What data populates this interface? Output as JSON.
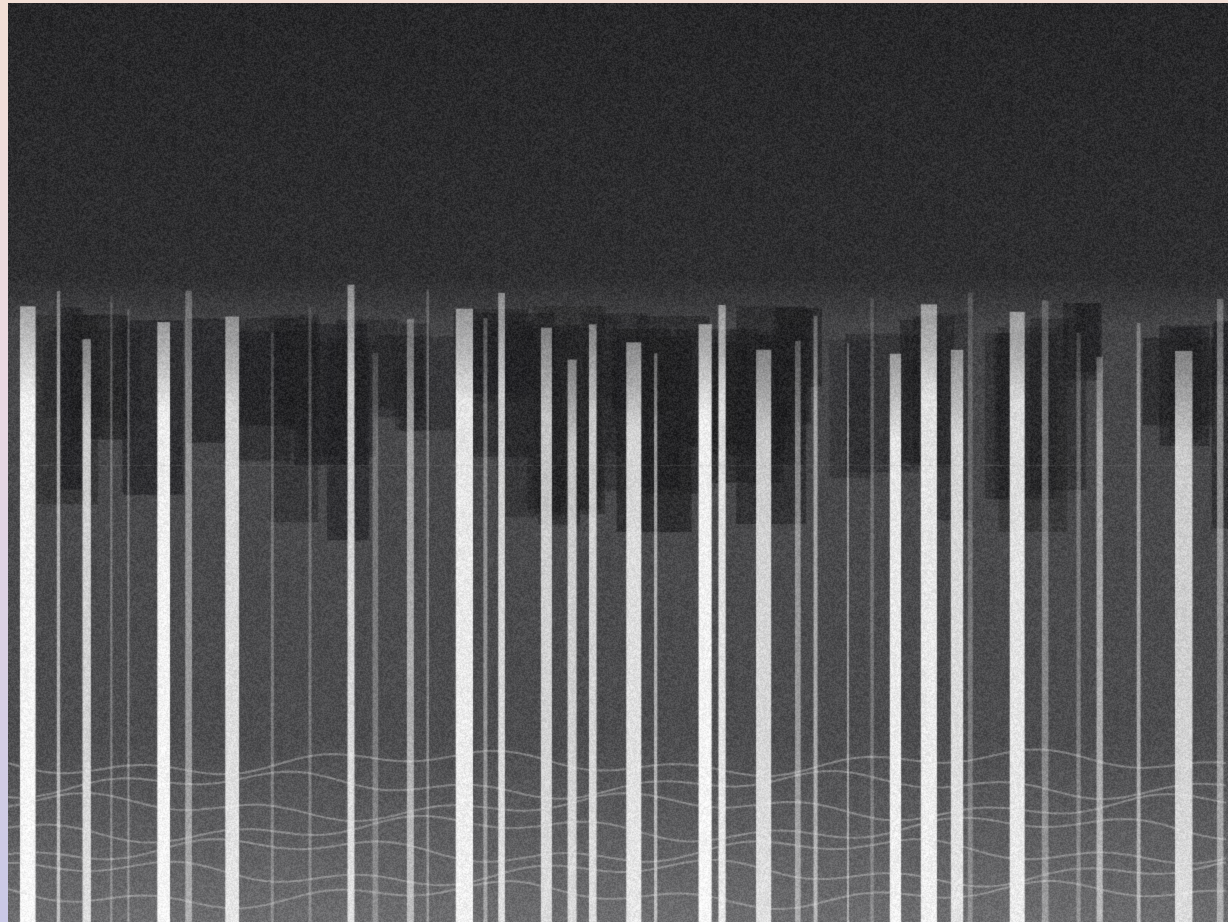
{
  "image": {
    "kind": "spectrogram",
    "colormap": "grayscale",
    "background_color": "#2f2f31",
    "page_gradient": [
      "#f2dfd6",
      "#e9d8e3",
      "#c9c8e6"
    ]
  }
}
